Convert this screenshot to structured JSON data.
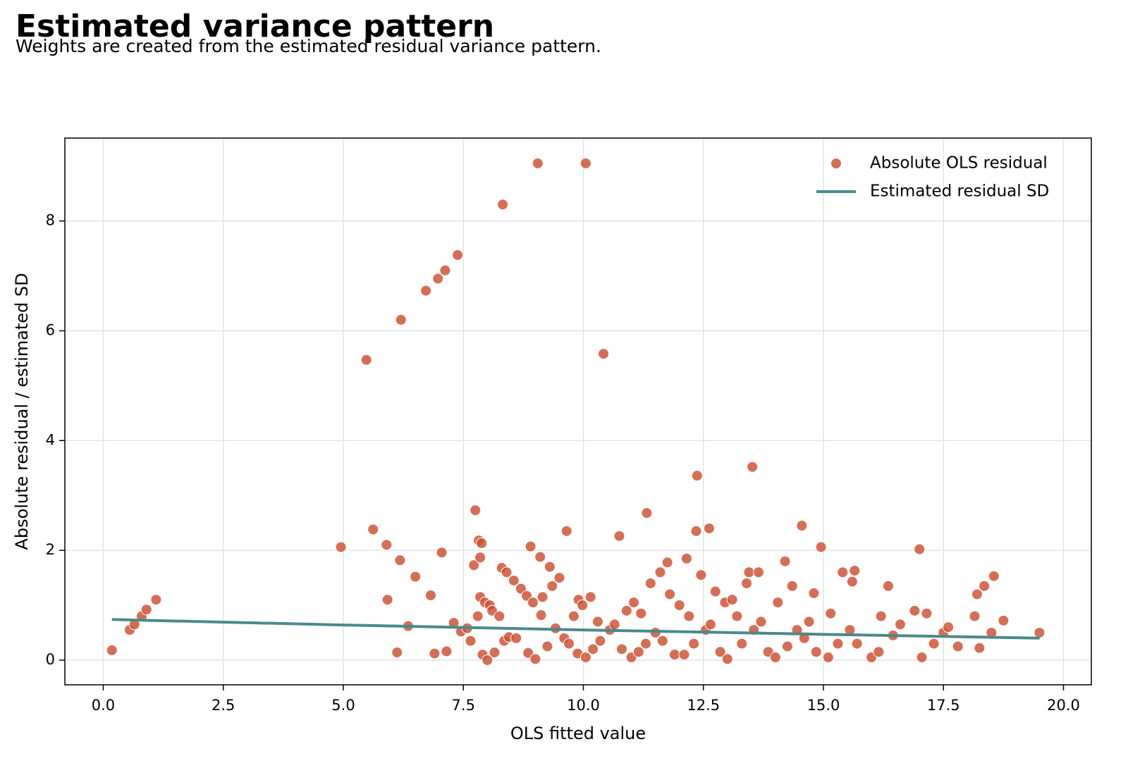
{
  "chart_data": {
    "type": "scatter",
    "title": "Estimated variance pattern",
    "subtitle": "Weights are created from the estimated residual variance pattern.",
    "x_label": "OLS fitted value",
    "y_label": "Absolute residual / estimated SD",
    "xlim": [
      -0.8,
      20.58
    ],
    "ylim": [
      -0.45,
      9.51
    ],
    "xticks": [
      {
        "value": 0,
        "label": "0.0"
      },
      2.5,
      {
        "value": 5,
        "label": "5.0"
      },
      7.5,
      {
        "value": 10,
        "label": "10.0"
      },
      12.5,
      {
        "value": 15,
        "label": "15.0"
      },
      17.5,
      {
        "value": 20,
        "label": "20.0"
      }
    ],
    "yticks": [
      0,
      2,
      4,
      6,
      8
    ],
    "grid": true,
    "legend": "upper right",
    "series": [
      {
        "name": "Absolute OLS residual",
        "kind": "scatter",
        "color": "#cc4e2f",
        "x": [
          0.18,
          0.55,
          0.65,
          0.8,
          0.9,
          1.1,
          4.95,
          5.48,
          5.62,
          5.9,
          5.92,
          6.12,
          6.18,
          6.2,
          6.35,
          6.5,
          6.72,
          6.82,
          6.9,
          6.97,
          7.05,
          7.12,
          7.15,
          7.3,
          7.38,
          7.45,
          7.58,
          7.65,
          7.72,
          7.75,
          7.8,
          7.82,
          7.85,
          7.88,
          7.85,
          7.9,
          7.95,
          8.0,
          8.05,
          8.1,
          8.15,
          8.25,
          8.3,
          8.32,
          8.35,
          8.4,
          8.45,
          8.55,
          8.6,
          8.7,
          8.82,
          8.85,
          8.9,
          8.95,
          9.0,
          9.05,
          9.1,
          9.12,
          9.15,
          9.25,
          9.3,
          9.35,
          9.42,
          9.5,
          9.6,
          9.65,
          9.7,
          9.8,
          9.88,
          9.9,
          9.98,
          10.05,
          10.05,
          10.15,
          10.2,
          10.3,
          10.35,
          10.42,
          10.55,
          10.65,
          10.75,
          10.8,
          10.9,
          11.0,
          11.05,
          11.15,
          11.2,
          11.3,
          11.32,
          11.4,
          11.5,
          11.6,
          11.65,
          11.75,
          11.8,
          11.9,
          12.0,
          12.1,
          12.15,
          12.2,
          12.3,
          12.35,
          12.37,
          12.45,
          12.55,
          12.62,
          12.65,
          12.75,
          12.85,
          12.95,
          13.0,
          13.1,
          13.2,
          13.3,
          13.4,
          13.45,
          13.52,
          13.55,
          13.65,
          13.7,
          13.85,
          14.0,
          14.05,
          14.2,
          14.25,
          14.35,
          14.45,
          14.55,
          14.6,
          14.7,
          14.8,
          14.85,
          14.95,
          15.1,
          15.15,
          15.3,
          15.4,
          15.55,
          15.6,
          15.65,
          15.7,
          16.0,
          16.15,
          16.2,
          16.35,
          16.45,
          16.6,
          16.9,
          17.0,
          17.05,
          17.15,
          17.3,
          17.5,
          17.6,
          17.8,
          18.15,
          18.2,
          18.25,
          18.35,
          18.5,
          18.55,
          18.75,
          19.5
        ],
        "values": [
          0.18,
          0.55,
          0.65,
          0.8,
          0.92,
          1.1,
          2.06,
          5.47,
          2.38,
          2.1,
          1.1,
          0.14,
          1.82,
          6.2,
          0.62,
          1.52,
          6.73,
          1.18,
          0.12,
          6.95,
          1.96,
          7.1,
          0.16,
          0.68,
          7.38,
          0.52,
          0.58,
          0.35,
          1.73,
          2.73,
          0.8,
          2.18,
          1.87,
          2.13,
          1.15,
          0.1,
          1.05,
          0.0,
          1.0,
          0.9,
          0.14,
          0.8,
          1.68,
          8.3,
          0.35,
          1.6,
          0.42,
          1.45,
          0.4,
          1.3,
          1.17,
          0.13,
          2.07,
          1.05,
          0.02,
          9.05,
          1.88,
          0.82,
          1.15,
          0.25,
          1.7,
          1.35,
          0.58,
          1.5,
          0.4,
          2.35,
          0.3,
          0.8,
          0.12,
          1.1,
          1.0,
          9.05,
          0.05,
          1.15,
          0.2,
          0.7,
          0.35,
          5.58,
          0.55,
          0.65,
          2.26,
          0.2,
          0.9,
          0.05,
          1.05,
          0.15,
          0.85,
          0.3,
          2.68,
          1.4,
          0.5,
          1.6,
          0.35,
          1.78,
          1.2,
          0.1,
          1.0,
          0.1,
          1.85,
          0.8,
          0.3,
          2.35,
          3.36,
          1.55,
          0.55,
          2.4,
          0.65,
          1.25,
          0.15,
          1.05,
          0.02,
          1.1,
          0.8,
          0.3,
          1.4,
          1.6,
          3.52,
          0.55,
          1.6,
          0.7,
          0.15,
          0.05,
          1.05,
          1.8,
          0.25,
          1.35,
          0.55,
          2.45,
          0.4,
          0.7,
          1.22,
          0.15,
          2.06,
          0.05,
          0.85,
          0.3,
          1.6,
          0.55,
          1.43,
          1.63,
          0.3,
          0.05,
          0.15,
          0.8,
          1.35,
          0.45,
          0.65,
          0.9,
          2.02,
          0.05,
          0.85,
          0.3,
          0.5,
          0.6,
          0.25,
          0.8,
          1.2,
          0.22,
          1.35,
          0.5,
          1.53,
          0.72,
          0.5
        ]
      },
      {
        "name": "Estimated residual SD",
        "kind": "line",
        "color": "#4a8a8a",
        "x": [
          0.18,
          5,
          10,
          15,
          19.5
        ],
        "values": [
          0.74,
          0.64,
          0.55,
          0.47,
          0.4
        ]
      }
    ]
  }
}
